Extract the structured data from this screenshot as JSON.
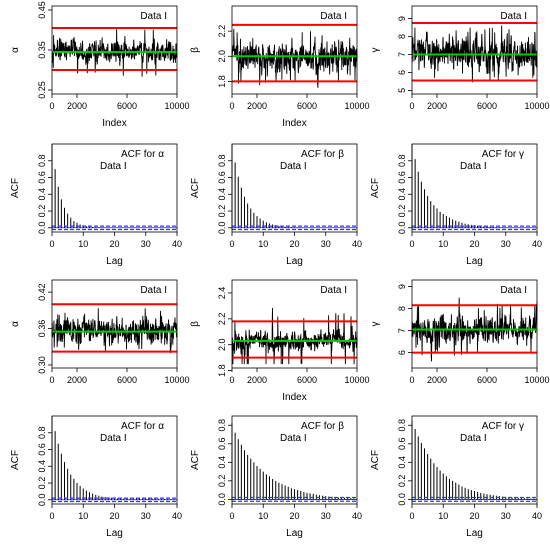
{
  "chart_data": [
    {
      "type": "trace",
      "ylabel": "α",
      "xlabel": "Index",
      "label": "Data I",
      "xlim": [
        0,
        10000
      ],
      "ylim": [
        0.24,
        0.46
      ],
      "x_ticks": [
        0,
        2000,
        6000,
        10000
      ],
      "y_ticks": [
        "0.25",
        "0.35",
        "0.45"
      ],
      "center": 0.345,
      "lower": 0.3,
      "upper": 0.405,
      "series_range": [
        0.27,
        0.45
      ],
      "n": 10000
    },
    {
      "type": "trace",
      "ylabel": "β",
      "xlabel": "Index",
      "label": "Data I",
      "xlim": [
        0,
        10000
      ],
      "ylim": [
        1.7,
        2.4
      ],
      "x_ticks": [
        0,
        2000,
        6000,
        10000
      ],
      "y_ticks": [
        "1.8",
        "2.0",
        "2.2"
      ],
      "center": 2.0,
      "lower": 1.8,
      "upper": 2.25,
      "series_range": [
        1.75,
        2.4
      ],
      "n": 10000
    },
    {
      "type": "trace",
      "ylabel": "γ",
      "xlabel": "",
      "label": "Data I",
      "xlim": [
        0,
        10000
      ],
      "ylim": [
        4.8,
        9.7
      ],
      "x_ticks": [
        0,
        2000,
        6000,
        10000
      ],
      "y_ticks": [
        "5",
        "6",
        "7",
        "8",
        "9"
      ],
      "center": 7.0,
      "lower": 5.55,
      "upper": 8.75,
      "series_range": [
        5.2,
        9.6
      ],
      "n": 10000
    },
    {
      "type": "bar",
      "ylabel": "ACF",
      "xlabel": "Lag",
      "title": "ACF for α",
      "subtitle": "Data I",
      "lags": [
        0,
        1,
        2,
        3,
        4,
        5,
        6,
        7,
        8,
        9,
        10,
        11,
        12,
        13,
        14,
        15,
        16,
        17,
        18,
        19,
        20,
        21,
        22,
        23,
        24,
        25,
        26,
        27,
        28,
        29,
        30,
        31,
        32,
        33,
        34,
        35,
        36,
        37,
        38,
        39,
        40
      ],
      "values": [
        1.0,
        0.7,
        0.49,
        0.34,
        0.24,
        0.17,
        0.12,
        0.08,
        0.06,
        0.04,
        0.03,
        0.02,
        0.015,
        0.01,
        0.008,
        0.006,
        0.005,
        0.004,
        0.003,
        0.003,
        0.003,
        0.003,
        0.003,
        0.003,
        0.003,
        0.003,
        0.003,
        0.003,
        0.003,
        0.003,
        0.003,
        0.003,
        0.003,
        0.003,
        0.003,
        0.003,
        0.003,
        0.003,
        0.003,
        0.003,
        0.003
      ],
      "conf_band": 0.02,
      "xlim": [
        0,
        40
      ],
      "ylim": [
        -0.05,
        1.0
      ],
      "x_ticks": [
        "0",
        "10",
        "20",
        "30",
        "40"
      ],
      "y_ticks": [
        "0.0",
        "0.2",
        "0.4",
        "0.6",
        "0.8"
      ]
    },
    {
      "type": "bar",
      "ylabel": "ACF",
      "xlabel": "Lag",
      "title": "ACF for β",
      "subtitle": "Data I",
      "lags": [
        0,
        1,
        2,
        3,
        4,
        5,
        6,
        7,
        8,
        9,
        10,
        11,
        12,
        13,
        14,
        15,
        16,
        17,
        18,
        19,
        20,
        21,
        22,
        23,
        24,
        25,
        26,
        27,
        28,
        29,
        30,
        31,
        32,
        33,
        34,
        35,
        36,
        37,
        38,
        39,
        40
      ],
      "values": [
        1.0,
        0.78,
        0.61,
        0.48,
        0.37,
        0.29,
        0.23,
        0.18,
        0.14,
        0.11,
        0.085,
        0.066,
        0.052,
        0.04,
        0.032,
        0.025,
        0.019,
        0.015,
        0.012,
        0.009,
        0.007,
        0.006,
        0.005,
        0.004,
        0.003,
        0.003,
        0.003,
        0.003,
        0.003,
        0.003,
        0.003,
        0.003,
        0.003,
        0.003,
        0.003,
        0.003,
        0.003,
        0.003,
        0.003,
        0.003,
        0.003
      ],
      "conf_band": 0.02,
      "xlim": [
        0,
        40
      ],
      "ylim": [
        -0.05,
        1.0
      ],
      "x_ticks": [
        "0",
        "10",
        "20",
        "30",
        "40"
      ],
      "y_ticks": [
        "0.0",
        "0.2",
        "0.4",
        "0.6",
        "0.8"
      ]
    },
    {
      "type": "bar",
      "ylabel": "ACF",
      "xlabel": "Lag",
      "title": "ACF for γ",
      "subtitle": "Data I",
      "lags": [
        0,
        1,
        2,
        3,
        4,
        5,
        6,
        7,
        8,
        9,
        10,
        11,
        12,
        13,
        14,
        15,
        16,
        17,
        18,
        19,
        20,
        21,
        22,
        23,
        24,
        25,
        26,
        27,
        28,
        29,
        30,
        31,
        32,
        33,
        34,
        35,
        36,
        37,
        38,
        39,
        40
      ],
      "values": [
        1.0,
        0.82,
        0.67,
        0.55,
        0.46,
        0.38,
        0.32,
        0.27,
        0.23,
        0.19,
        0.165,
        0.14,
        0.12,
        0.1,
        0.085,
        0.072,
        0.06,
        0.05,
        0.042,
        0.035,
        0.03,
        0.025,
        0.02,
        0.017,
        0.014,
        0.012,
        0.01,
        0.008,
        0.007,
        0.006,
        0.005,
        0.004,
        0.004,
        0.003,
        0.003,
        0.003,
        0.003,
        0.003,
        0.003,
        0.003,
        0.003
      ],
      "conf_band": 0.02,
      "xlim": [
        0,
        40
      ],
      "ylim": [
        -0.05,
        1.0
      ],
      "x_ticks": [
        "0",
        "10",
        "20",
        "30",
        "40"
      ],
      "y_ticks": [
        "0.0",
        "0.2",
        "0.4",
        "0.6",
        "0.8"
      ]
    },
    {
      "type": "trace",
      "ylabel": "α",
      "xlabel": "",
      "label": "Data I",
      "xlim": [
        0,
        10000
      ],
      "ylim": [
        0.295,
        0.44
      ],
      "x_ticks": [
        0,
        2000,
        6000,
        10000
      ],
      "y_ticks": [
        "0.30",
        "0.36",
        "0.42"
      ],
      "center": 0.355,
      "lower": 0.322,
      "upper": 0.4,
      "series_range": [
        0.31,
        0.415
      ],
      "n": 10000
    },
    {
      "type": "trace",
      "ylabel": "β",
      "xlabel": "Index",
      "label": "Data I",
      "xlim": [
        0,
        10000
      ],
      "ylim": [
        1.82,
        2.5
      ],
      "x_ticks": [
        0,
        2000,
        6000,
        10000
      ],
      "y_ticks": [
        "1.8",
        "2.0",
        "2.2",
        "2.4"
      ],
      "center": 2.03,
      "lower": 1.9,
      "upper": 2.18,
      "series_range": [
        1.85,
        2.47
      ],
      "n": 10000
    },
    {
      "type": "trace",
      "ylabel": "γ",
      "xlabel": "",
      "label": "Data I",
      "xlim": [
        0,
        10000
      ],
      "ylim": [
        5.3,
        9.3
      ],
      "x_ticks": [
        0,
        2000,
        6000,
        10000
      ],
      "y_ticks": [
        "6",
        "7",
        "8",
        "9"
      ],
      "center": 7.05,
      "lower": 6.0,
      "upper": 8.15,
      "series_range": [
        5.6,
        9.0
      ],
      "n": 10000
    },
    {
      "type": "bar",
      "ylabel": "ACF",
      "xlabel": "Lag",
      "title": "ACF for α",
      "subtitle": "Data I",
      "lags": [
        0,
        1,
        2,
        3,
        4,
        5,
        6,
        7,
        8,
        9,
        10,
        11,
        12,
        13,
        14,
        15,
        16,
        17,
        18,
        19,
        20,
        21,
        22,
        23,
        24,
        25,
        26,
        27,
        28,
        29,
        30,
        31,
        32,
        33,
        34,
        35,
        36,
        37,
        38,
        39,
        40
      ],
      "values": [
        1.0,
        0.82,
        0.67,
        0.55,
        0.45,
        0.37,
        0.3,
        0.25,
        0.2,
        0.165,
        0.135,
        0.11,
        0.09,
        0.075,
        0.06,
        0.05,
        0.04,
        0.035,
        0.03,
        0.025,
        0.02,
        0.018,
        0.015,
        0.015,
        0.014,
        0.014,
        0.015,
        0.016,
        0.016,
        0.017,
        0.017,
        0.016,
        0.015,
        0.014,
        0.013,
        0.012,
        0.011,
        0.01,
        0.009,
        0.008,
        0.007
      ],
      "conf_band": 0.02,
      "xlim": [
        0,
        40
      ],
      "ylim": [
        -0.05,
        1.0
      ],
      "x_ticks": [
        "0",
        "10",
        "20",
        "30",
        "40"
      ],
      "y_ticks": [
        "0.0",
        "0.2",
        "0.4",
        "0.6",
        "0.8"
      ]
    },
    {
      "type": "bar",
      "ylabel": "ACF",
      "xlabel": "Lag",
      "title": "ACF for β",
      "subtitle": "Data I",
      "lags": [
        0,
        1,
        2,
        3,
        4,
        5,
        6,
        7,
        8,
        9,
        10,
        11,
        12,
        13,
        14,
        15,
        16,
        17,
        18,
        19,
        20,
        21,
        22,
        23,
        24,
        25,
        26,
        27,
        28,
        29,
        30,
        31,
        32,
        33,
        34,
        35,
        36,
        37,
        38,
        39,
        40
      ],
      "values": [
        0.82,
        0.72,
        0.65,
        0.59,
        0.53,
        0.48,
        0.44,
        0.4,
        0.36,
        0.33,
        0.3,
        0.27,
        0.25,
        0.22,
        0.2,
        0.18,
        0.165,
        0.15,
        0.135,
        0.12,
        0.11,
        0.1,
        0.09,
        0.08,
        0.07,
        0.065,
        0.06,
        0.05,
        0.045,
        0.04,
        0.035,
        0.03,
        0.028,
        0.025,
        0.022,
        0.02,
        0.018,
        0.016,
        0.014,
        0.012,
        0.01
      ],
      "conf_band": 0.02,
      "xlim": [
        0,
        40
      ],
      "ylim": [
        -0.05,
        0.9
      ],
      "x_ticks": [
        "0",
        "10",
        "20",
        "30",
        "40"
      ],
      "y_ticks": [
        "0.0",
        "0.2",
        "0.4",
        "0.6",
        "0.8"
      ]
    },
    {
      "type": "bar",
      "ylabel": "ACF",
      "xlabel": "Lag",
      "title": "ACF for γ",
      "subtitle": "Data I",
      "lags": [
        0,
        1,
        2,
        3,
        4,
        5,
        6,
        7,
        8,
        9,
        10,
        11,
        12,
        13,
        14,
        15,
        16,
        17,
        18,
        19,
        20,
        21,
        22,
        23,
        24,
        25,
        26,
        27,
        28,
        29,
        30,
        31,
        32,
        33,
        34,
        35,
        36,
        37,
        38,
        39,
        40
      ],
      "values": [
        0.85,
        0.76,
        0.68,
        0.61,
        0.55,
        0.49,
        0.44,
        0.39,
        0.35,
        0.31,
        0.28,
        0.25,
        0.22,
        0.2,
        0.18,
        0.16,
        0.14,
        0.125,
        0.11,
        0.1,
        0.09,
        0.08,
        0.07,
        0.062,
        0.055,
        0.05,
        0.045,
        0.04,
        0.035,
        0.03,
        0.027,
        0.024,
        0.021,
        0.019,
        0.017,
        0.015,
        0.013,
        0.011,
        0.01,
        0.009,
        0.008
      ],
      "conf_band": 0.02,
      "xlim": [
        0,
        40
      ],
      "ylim": [
        -0.05,
        0.9
      ],
      "x_ticks": [
        "0",
        "10",
        "20",
        "30",
        "40"
      ],
      "y_ticks": [
        "0.0",
        "0.2",
        "0.4",
        "0.6",
        "0.8"
      ]
    }
  ],
  "colors": {
    "trace": "#000000",
    "center_line": "#00cc00",
    "bounds_line": "#ff0000",
    "conf_band": "#3333ff",
    "bar": "#000000",
    "frame": "#000000"
  }
}
